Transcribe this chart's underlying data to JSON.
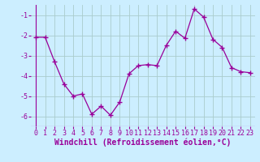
{
  "x": [
    0,
    1,
    2,
    3,
    4,
    5,
    6,
    7,
    8,
    9,
    10,
    11,
    12,
    13,
    14,
    15,
    16,
    17,
    18,
    19,
    20,
    21,
    22,
    23
  ],
  "y": [
    -2.1,
    -2.1,
    -3.3,
    -4.4,
    -5.0,
    -4.9,
    -5.9,
    -5.5,
    -5.95,
    -5.3,
    -3.9,
    -3.5,
    -3.45,
    -3.5,
    -2.5,
    -1.8,
    -2.15,
    -0.7,
    -1.1,
    -2.2,
    -2.6,
    -3.6,
    -3.8,
    -3.85
  ],
  "line_color": "#990099",
  "marker": "+",
  "marker_size": 4,
  "marker_linewidth": 1.0,
  "background_color": "#cceeff",
  "grid_color": "#aacccc",
  "xlabel": "Windchill (Refroidissement éolien,°C)",
  "xlabel_fontsize": 7,
  "tick_fontsize": 6,
  "ylim": [
    -6.5,
    -0.5
  ],
  "yticks": [
    -6,
    -5,
    -4,
    -3,
    -2,
    -1
  ],
  "xlim": [
    -0.5,
    23.5
  ],
  "xticks": [
    0,
    1,
    2,
    3,
    4,
    5,
    6,
    7,
    8,
    9,
    10,
    11,
    12,
    13,
    14,
    15,
    16,
    17,
    18,
    19,
    20,
    21,
    22,
    23
  ]
}
